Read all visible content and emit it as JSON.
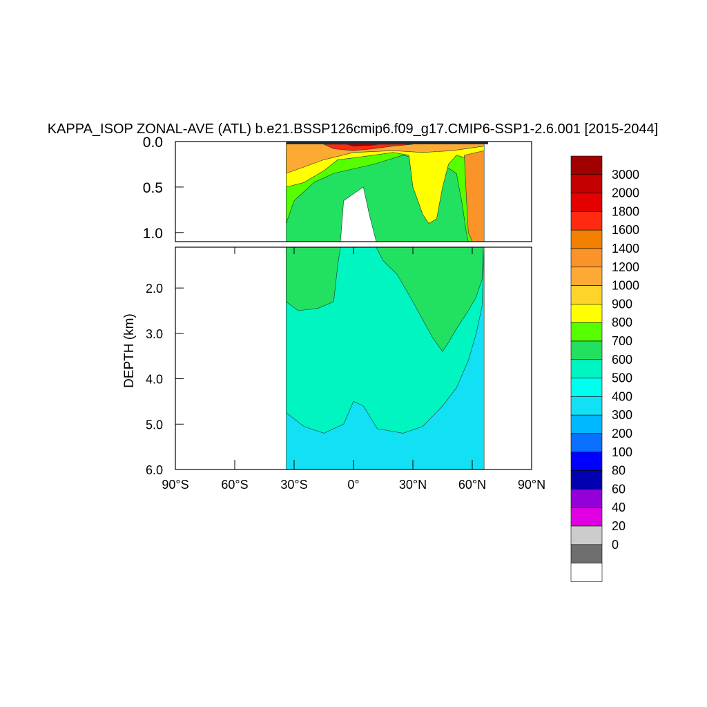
{
  "chart_data": {
    "type": "heatmap",
    "title": "KAPPA_ISOP ZONAL-AVE (ATL) b.e21.BSSP126cmip6.f09_g17.CMIP6-SSP1-2.6.001 [2015-2044]",
    "ylabel": "DEPTH (km)",
    "xlabel": "",
    "xlim": [
      -90,
      90
    ],
    "x_ticks": [
      {
        "value": -90,
        "label": "90°S"
      },
      {
        "value": -60,
        "label": "60°S"
      },
      {
        "value": -30,
        "label": "30°S"
      },
      {
        "value": 0,
        "label": "0°"
      },
      {
        "value": 30,
        "label": "30°N"
      },
      {
        "value": 60,
        "label": "60°N"
      },
      {
        "value": 90,
        "label": "90°N"
      }
    ],
    "upper_panel": {
      "ylim": [
        0,
        1.1
      ],
      "y_ticks": [
        {
          "value": 0.0,
          "label": "0.0"
        },
        {
          "value": 0.5,
          "label": "0.5"
        },
        {
          "value": 1.0,
          "label": "1.0"
        }
      ]
    },
    "lower_panel": {
      "ylim": [
        1.1,
        6.0
      ],
      "y_ticks": [
        {
          "value": 2.0,
          "label": "2.0"
        },
        {
          "value": 3.0,
          "label": "3.0"
        },
        {
          "value": 4.0,
          "label": "4.0"
        },
        {
          "value": 5.0,
          "label": "5.0"
        },
        {
          "value": 6.0,
          "label": "6.0"
        }
      ]
    },
    "colorbar": {
      "levels": [
        "3000",
        "2000",
        "1800",
        "1600",
        "1400",
        "1200",
        "1000",
        "900",
        "800",
        "700",
        "600",
        "500",
        "400",
        "300",
        "200",
        "100",
        "80",
        "60",
        "40",
        "20",
        "0"
      ],
      "colors": [
        "#a00000",
        "#c40000",
        "#e40000",
        "#ff2a10",
        "#f38000",
        "#fb9428",
        "#fdaa35",
        "#ffd42a",
        "#ffff00",
        "#55ff00",
        "#22e060",
        "#00f5c0",
        "#00ffee",
        "#12e0f5",
        "#00b8ff",
        "#0a70ff",
        "#0000ff",
        "#0000b0",
        "#9400d8",
        "#e100e1",
        "#cccccc",
        "#6e6e6e",
        "#ffffff"
      ]
    },
    "field": {
      "ocean_south_edge": -34,
      "bands": [
        {
          "level": "400",
          "color": "#12e0f5",
          "region": [
            [
              -34,
              4.85
            ],
            [
              -34,
              6.0
            ],
            [
              66,
              6.0
            ],
            [
              66,
              1.1
            ],
            [
              -34,
              1.1
            ]
          ]
        },
        {
          "level": "500",
          "color": "#00f5c0",
          "region": [
            [
              -34,
              1.5
            ],
            [
              -34,
              4.75
            ],
            [
              -25,
              5.05
            ],
            [
              -15,
              5.2
            ],
            [
              -5,
              5.0
            ],
            [
              0,
              4.5
            ],
            [
              5,
              4.6
            ],
            [
              12,
              5.1
            ],
            [
              25,
              5.2
            ],
            [
              35,
              5.05
            ],
            [
              45,
              4.6
            ],
            [
              52,
              4.2
            ],
            [
              58,
              3.6
            ],
            [
              62,
              3.0
            ],
            [
              65,
              2.4
            ],
            [
              66,
              1.1
            ],
            [
              -34,
              1.1
            ]
          ]
        },
        {
          "level": "600",
          "color": "#22e060",
          "region": [
            [
              -34,
              0.85
            ],
            [
              -34,
              2.3
            ],
            [
              -28,
              2.5
            ],
            [
              -18,
              2.45
            ],
            [
              -10,
              2.3
            ],
            [
              -8,
              1.5
            ],
            [
              -5,
              0.65
            ],
            [
              5,
              0.5
            ],
            [
              8,
              0.8
            ],
            [
              15,
              1.4
            ],
            [
              22,
              1.7
            ],
            [
              30,
              2.3
            ],
            [
              35,
              2.7
            ],
            [
              40,
              3.1
            ],
            [
              45,
              3.4
            ],
            [
              48,
              3.2
            ],
            [
              52,
              2.9
            ],
            [
              58,
              2.5
            ],
            [
              62,
              2.2
            ],
            [
              65,
              1.8
            ],
            [
              66,
              0.2
            ],
            [
              52,
              0.2
            ],
            [
              30,
              0.05
            ],
            [
              0,
              0.1
            ],
            [
              -34,
              0.2
            ]
          ]
        },
        {
          "level": "700",
          "color": "#55ff00",
          "region": [
            [
              -34,
              0.45
            ],
            [
              -34,
              0.9
            ],
            [
              -30,
              0.65
            ],
            [
              -20,
              0.45
            ],
            [
              -10,
              0.35
            ],
            [
              0,
              0.3
            ],
            [
              10,
              0.25
            ],
            [
              25,
              0.15
            ],
            [
              35,
              0.2
            ],
            [
              45,
              0.25
            ],
            [
              52,
              0.35
            ],
            [
              55,
              0.7
            ],
            [
              57,
              1.0
            ],
            [
              58,
              1.1
            ],
            [
              66,
              1.1
            ],
            [
              66,
              0.05
            ],
            [
              -34,
              0.05
            ]
          ]
        },
        {
          "level": "800",
          "color": "#ffff00",
          "region": [
            [
              -34,
              0.3
            ],
            [
              -34,
              0.5
            ],
            [
              -25,
              0.45
            ],
            [
              -15,
              0.32
            ],
            [
              -8,
              0.2
            ],
            [
              0,
              0.18
            ],
            [
              10,
              0.15
            ],
            [
              20,
              0.12
            ],
            [
              28,
              0.15
            ],
            [
              30,
              0.5
            ],
            [
              35,
              0.8
            ],
            [
              38,
              0.9
            ],
            [
              42,
              0.85
            ],
            [
              45,
              0.5
            ],
            [
              48,
              0.25
            ],
            [
              52,
              0.15
            ],
            [
              60,
              0.2
            ],
            [
              66,
              0.15
            ],
            [
              66,
              0.02
            ],
            [
              -34,
              0.02
            ]
          ]
        },
        {
          "level": "1200",
          "color": "#fdaa35",
          "region": [
            [
              -34,
              0.1
            ],
            [
              -34,
              0.35
            ],
            [
              -25,
              0.28
            ],
            [
              -15,
              0.2
            ],
            [
              0,
              0.12
            ],
            [
              20,
              0.1
            ],
            [
              35,
              0.12
            ],
            [
              50,
              0.1
            ],
            [
              66,
              0.05
            ],
            [
              66,
              0.02
            ],
            [
              -34,
              0.02
            ]
          ]
        },
        {
          "level": "1400",
          "color": "#fb9428",
          "region": [
            [
              56,
              0.15
            ],
            [
              57,
              0.6
            ],
            [
              58,
              1.0
            ],
            [
              60,
              1.1
            ],
            [
              66,
              1.1
            ],
            [
              66,
              0.1
            ]
          ]
        },
        {
          "level": "1600",
          "color": "#ff2a10",
          "region": [
            [
              -15,
              0.03
            ],
            [
              -10,
              0.08
            ],
            [
              0,
              0.1
            ],
            [
              10,
              0.08
            ],
            [
              20,
              0.05
            ],
            [
              30,
              0.03
            ]
          ]
        },
        {
          "level": "3000",
          "color": "#a00000",
          "region": [
            [
              -5,
              0.02
            ],
            [
              0,
              0.05
            ],
            [
              10,
              0.04
            ],
            [
              15,
              0.02
            ]
          ]
        }
      ]
    }
  }
}
